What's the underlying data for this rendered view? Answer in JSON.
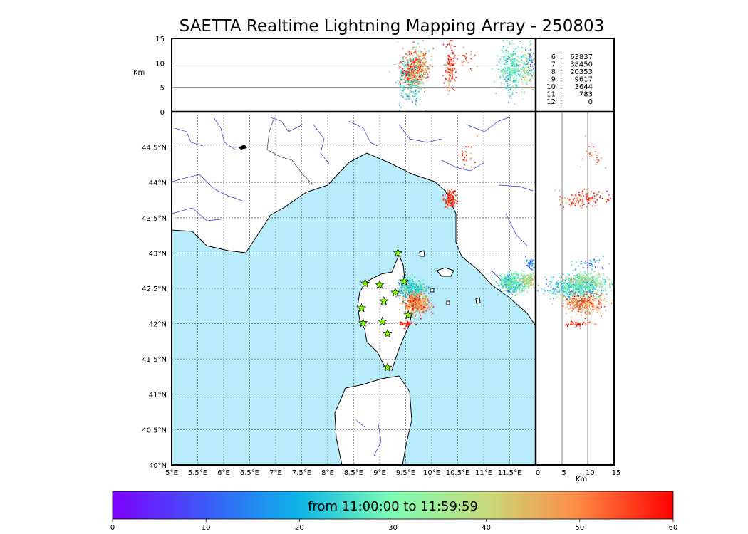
{
  "title": "SAETTA Realtime Lightning Mapping Array - 250803",
  "top_panel": {
    "ylabel": "Km",
    "yticks": [
      "15",
      "10",
      "5",
      "0"
    ],
    "counts": [
      {
        "level": "6",
        "value": "63837",
        "color": "#ff0000"
      },
      {
        "level": "7",
        "value": "38450",
        "color": "#000000"
      },
      {
        "level": "8",
        "value": "20353",
        "color": "#000000"
      },
      {
        "level": "9",
        "value": "9617",
        "color": "#000000"
      },
      {
        "level": "10",
        "value": "3644",
        "color": "#000000"
      },
      {
        "level": "11",
        "value": "783",
        "color": "#000000"
      },
      {
        "level": "12",
        "value": "0",
        "color": "#000000"
      }
    ]
  },
  "map": {
    "lat_ticks": [
      "44.5°N",
      "44°N",
      "43.5°N",
      "43°N",
      "42.5°N",
      "42°N",
      "41.5°N",
      "41°N",
      "40.5°N",
      "40°N"
    ],
    "lon_ticks": [
      "5°E",
      "5.5°E",
      "6°E",
      "6.5°E",
      "7°E",
      "7.5°E",
      "8°E",
      "8.5°E",
      "9°E",
      "9.5°E",
      "10°E",
      "10.5°E",
      "11°E",
      "11.5°E"
    ],
    "sea_color": "#b8ecfb",
    "station_color": "#80ff00"
  },
  "side_panel": {
    "xlabel": "Km",
    "xticks": [
      "0",
      "5",
      "10",
      "15"
    ]
  },
  "colorbar": {
    "label": "from 11:00:00 to 11:59:59",
    "ticks": [
      "0",
      "10",
      "20",
      "30",
      "40",
      "50",
      "60"
    ]
  },
  "chart_data": {
    "type": "scatter",
    "title": "SAETTA Realtime Lightning Mapping Array - 250803",
    "lon_range": [
      5,
      12
    ],
    "lat_range": [
      40,
      45
    ],
    "altitude_range_km": [
      0,
      15
    ],
    "color_range_minutes": [
      0,
      60
    ],
    "grid": true,
    "stations": [
      {
        "lon": 9.35,
        "lat": 43.0
      },
      {
        "lon": 8.72,
        "lat": 42.57
      },
      {
        "lon": 9.0,
        "lat": 42.55
      },
      {
        "lon": 9.47,
        "lat": 42.6
      },
      {
        "lon": 9.3,
        "lat": 42.44
      },
      {
        "lon": 9.08,
        "lat": 42.32
      },
      {
        "lon": 8.65,
        "lat": 42.22
      },
      {
        "lon": 9.55,
        "lat": 42.12
      },
      {
        "lon": 8.68,
        "lat": 42.01
      },
      {
        "lon": 9.05,
        "lat": 42.03
      },
      {
        "lon": 9.15,
        "lat": 41.86
      },
      {
        "lon": 9.15,
        "lat": 41.38
      }
    ],
    "clusters": [
      {
        "lon": 9.6,
        "lat": 42.5,
        "sd_lon": 0.12,
        "sd_lat": 0.07,
        "alt_km": 7,
        "sd_alt": 2.5,
        "minute": 25,
        "n": 420
      },
      {
        "lon": 9.7,
        "lat": 42.3,
        "sd_lon": 0.12,
        "sd_lat": 0.07,
        "alt_km": 9,
        "sd_alt": 2,
        "minute": 50,
        "n": 380
      },
      {
        "lon": 9.5,
        "lat": 42.0,
        "sd_lon": 0.07,
        "sd_lat": 0.02,
        "alt_km": 8,
        "sd_alt": 1.5,
        "minute": 57,
        "n": 40
      },
      {
        "lon": 10.35,
        "lat": 43.77,
        "sd_lon": 0.06,
        "sd_lat": 0.05,
        "alt_km": 9,
        "sd_alt": 2.5,
        "minute": 57,
        "n": 120
      },
      {
        "lon": 11.55,
        "lat": 42.58,
        "sd_lon": 0.13,
        "sd_lat": 0.07,
        "alt_km": 9,
        "sd_alt": 2.5,
        "minute": 28,
        "n": 420
      },
      {
        "lon": 11.85,
        "lat": 42.62,
        "sd_lon": 0.06,
        "sd_lat": 0.05,
        "alt_km": 9,
        "sd_alt": 2,
        "minute": 38,
        "n": 110
      },
      {
        "lon": 11.88,
        "lat": 42.85,
        "sd_lon": 0.04,
        "sd_lat": 0.04,
        "alt_km": 10,
        "sd_alt": 2,
        "minute": 15,
        "n": 40
      },
      {
        "lon": 10.7,
        "lat": 44.4,
        "sd_lon": 0.08,
        "sd_lat": 0.1,
        "alt_km": 11,
        "sd_alt": 1,
        "minute": 55,
        "n": 25
      }
    ]
  }
}
